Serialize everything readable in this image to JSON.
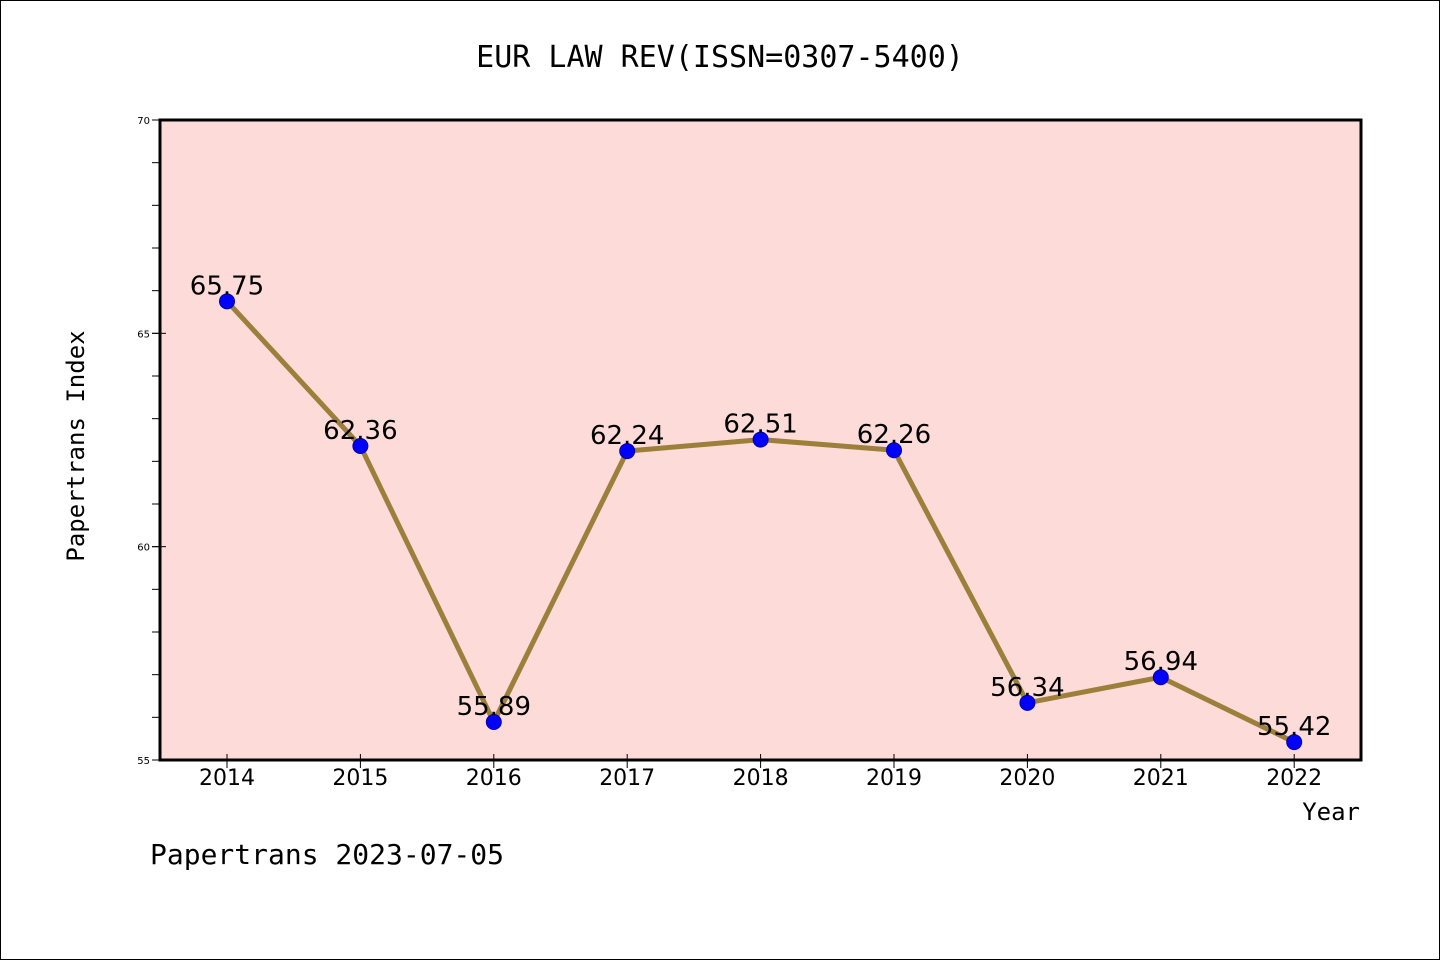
{
  "chart_data": {
    "type": "line",
    "title": "EUR LAW REV(ISSN=0307-5400)",
    "xlabel": "Year",
    "ylabel": "Papertrans Index",
    "categories": [
      "2014",
      "2015",
      "2016",
      "2017",
      "2018",
      "2019",
      "2020",
      "2021",
      "2022"
    ],
    "values": [
      65.75,
      62.36,
      55.89,
      62.24,
      62.51,
      62.26,
      56.34,
      56.94,
      55.42
    ],
    "data_labels": [
      "65.75",
      "62.36",
      "55.89",
      "62.24",
      "62.51",
      "62.26",
      "56.34",
      "56.94",
      "55.42"
    ],
    "ylim": [
      55,
      70
    ],
    "y_major_ticks": [
      "55",
      "60",
      "65",
      "70"
    ],
    "grid": false,
    "line_color": "#9b7f3a",
    "marker_color": "#0000ff",
    "plot_background": "#fddbd8"
  },
  "footer": "Papertrans 2023-07-05"
}
